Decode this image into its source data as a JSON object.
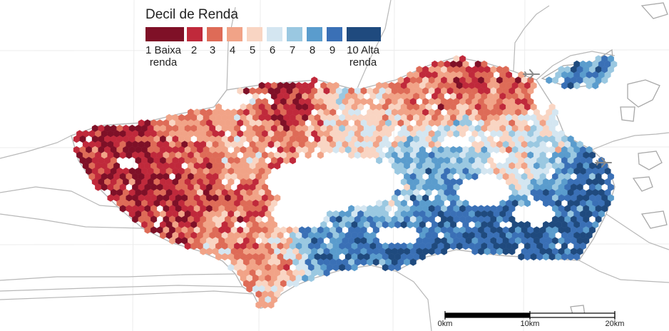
{
  "legend": {
    "title": "Decil de Renda",
    "deciles": [
      {
        "decile": 1,
        "label_line1": "1 Baixa",
        "label_line2": "renda",
        "color": "#7f1027"
      },
      {
        "decile": 2,
        "label_line1": "2",
        "label_line2": "",
        "color": "#c0293b"
      },
      {
        "decile": 3,
        "label_line1": "3",
        "label_line2": "",
        "color": "#de6b57"
      },
      {
        "decile": 4,
        "label_line1": "4",
        "label_line2": "",
        "color": "#f1a387"
      },
      {
        "decile": 5,
        "label_line1": "5",
        "label_line2": "",
        "color": "#f9d5c3"
      },
      {
        "decile": 6,
        "label_line1": "6",
        "label_line2": "",
        "color": "#d4e6f1"
      },
      {
        "decile": 7,
        "label_line1": "7",
        "label_line2": "",
        "color": "#9ac8e1"
      },
      {
        "decile": 8,
        "label_line1": "8",
        "label_line2": "",
        "color": "#5a9ccd"
      },
      {
        "decile": 9,
        "label_line1": "9",
        "label_line2": "",
        "color": "#3a70b6"
      },
      {
        "decile": 10,
        "label_line1": "10 Alta",
        "label_line2": "renda",
        "color": "#1f4a7e"
      }
    ]
  },
  "scale_bar": {
    "ticks": [
      "0km",
      "10km",
      "20km"
    ]
  },
  "colors": {
    "boundary_line": "#b8b8b8",
    "coast_line": "#a8a8a8",
    "background": "#ffffff"
  }
}
